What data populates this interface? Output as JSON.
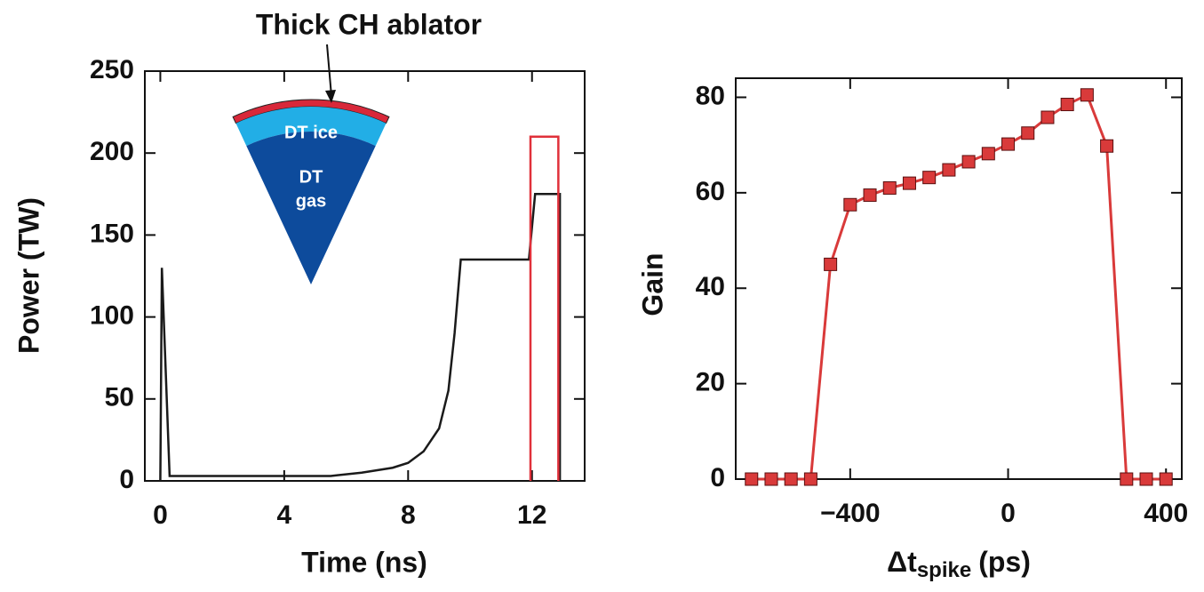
{
  "chart_data": [
    {
      "type": "line",
      "title": "Thick CH ablator",
      "xlabel": "Time (ns)",
      "ylabel": "Power (TW)",
      "annotations": {
        "ice": "DT ice",
        "gas_1": "DT",
        "gas_2": "gas"
      },
      "xlim": [
        -0.5,
        13.7
      ],
      "ylim": [
        0,
        250
      ],
      "xticks": [
        0,
        4,
        8,
        12
      ],
      "yticks": [
        0,
        50,
        100,
        150,
        200,
        250
      ],
      "series": [
        {
          "color": "#1a1a1a",
          "x": [
            0,
            0.05,
            0.3,
            2,
            4,
            5.5,
            6.5,
            7.5,
            8,
            8.5,
            9,
            9.3,
            9.5,
            9.7,
            11.9,
            12.1,
            12.9,
            12.9
          ],
          "values": [
            0,
            130,
            3,
            3,
            3,
            3,
            5,
            8,
            11,
            18,
            32,
            55,
            90,
            135,
            135,
            175,
            175,
            0
          ]
        },
        {
          "color": "#e0303a",
          "x": [
            11.95,
            11.95,
            12.85,
            12.85
          ],
          "values": [
            0,
            210,
            210,
            0
          ]
        }
      ]
    },
    {
      "type": "line",
      "markers": true,
      "ylabel": "Gain",
      "xlabel": {
        "main": "Δt",
        "sub": "spike",
        "unit": "(ps)"
      },
      "xlim": [
        -690,
        440
      ],
      "ylim": [
        0,
        84
      ],
      "xticks": [
        {
          "value": -400,
          "label": "−400"
        },
        0,
        400
      ],
      "yticks": [
        0,
        20,
        40,
        60,
        80
      ],
      "series": [
        {
          "color": "#d93a3a",
          "x": [
            -650,
            -600,
            -550,
            -500,
            -450,
            -400,
            -350,
            -300,
            -250,
            -200,
            -150,
            -100,
            -50,
            0,
            50,
            100,
            150,
            200,
            250,
            300,
            350,
            400
          ],
          "values": [
            0,
            0,
            0,
            0,
            45,
            57.5,
            59.5,
            61,
            62,
            63.2,
            64.8,
            66.5,
            68.2,
            70.2,
            72.5,
            75.8,
            78.5,
            80.5,
            69.8,
            0,
            0,
            0
          ]
        }
      ]
    }
  ]
}
